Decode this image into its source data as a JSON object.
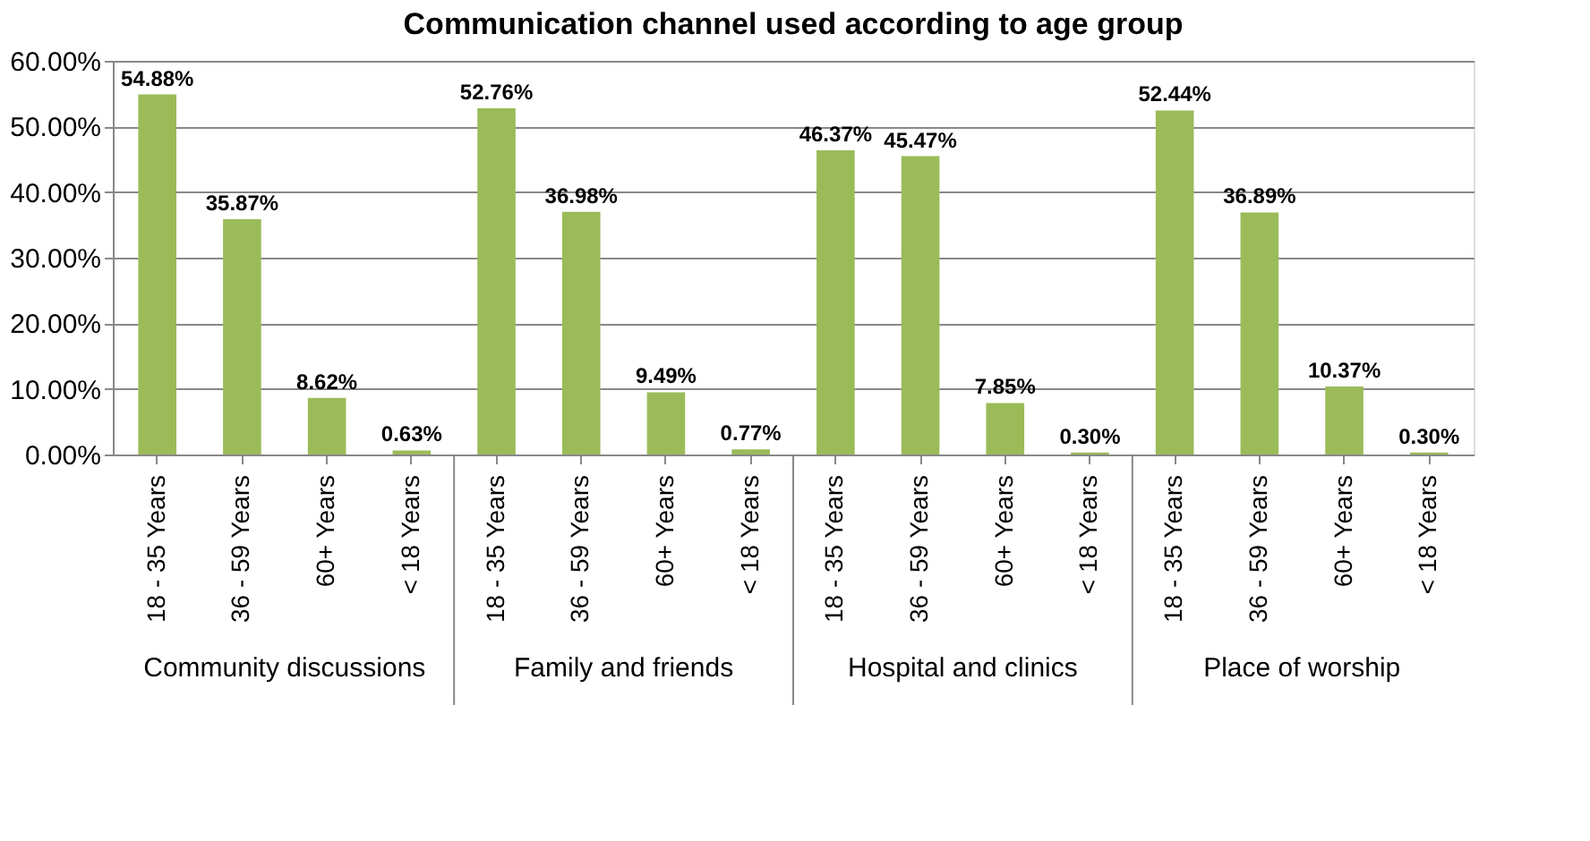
{
  "chart_data": {
    "type": "bar",
    "title": "Communication channel used according to age group",
    "categories": [
      "18 - 35 Years",
      "36 - 59 Years",
      "60+ Years",
      "< 18 Years",
      "18 - 35 Years",
      "36 - 59 Years",
      "60+ Years",
      "< 18 Years",
      "18 - 35 Years",
      "36 - 59 Years",
      "60+ Years",
      "< 18 Years",
      "18 - 35 Years",
      "36 - 59 Years",
      "60+ Years",
      "< 18 Years"
    ],
    "values": [
      54.88,
      35.87,
      8.62,
      0.63,
      52.76,
      36.98,
      9.49,
      0.77,
      46.37,
      45.47,
      7.85,
      0.3,
      52.44,
      36.89,
      10.37,
      0.3
    ],
    "value_labels": [
      "54.88%",
      "35.87%",
      "8.62%",
      "0.63%",
      "52.76%",
      "36.98%",
      "9.49%",
      "0.77%",
      "46.37%",
      "45.47%",
      "7.85%",
      "0.30%",
      "52.44%",
      "36.89%",
      "10.37%",
      "0.30%"
    ],
    "color": "#9bbb59",
    "ylim": [
      0,
      60
    ],
    "yticks": [
      {
        "value": 0,
        "label": "0.00%"
      },
      {
        "value": 10,
        "label": "10.00%"
      },
      {
        "value": 20,
        "label": "20.00%"
      },
      {
        "value": 30,
        "label": "30.00%"
      },
      {
        "value": 40,
        "label": "40.00%"
      },
      {
        "value": 50,
        "label": "50.00%"
      },
      {
        "value": 60,
        "label": "60.00%"
      }
    ],
    "grid": "y",
    "annotations": [
      "Community discussions",
      "Family and friends",
      "Hospital and clinics",
      "Place of worship"
    ]
  }
}
